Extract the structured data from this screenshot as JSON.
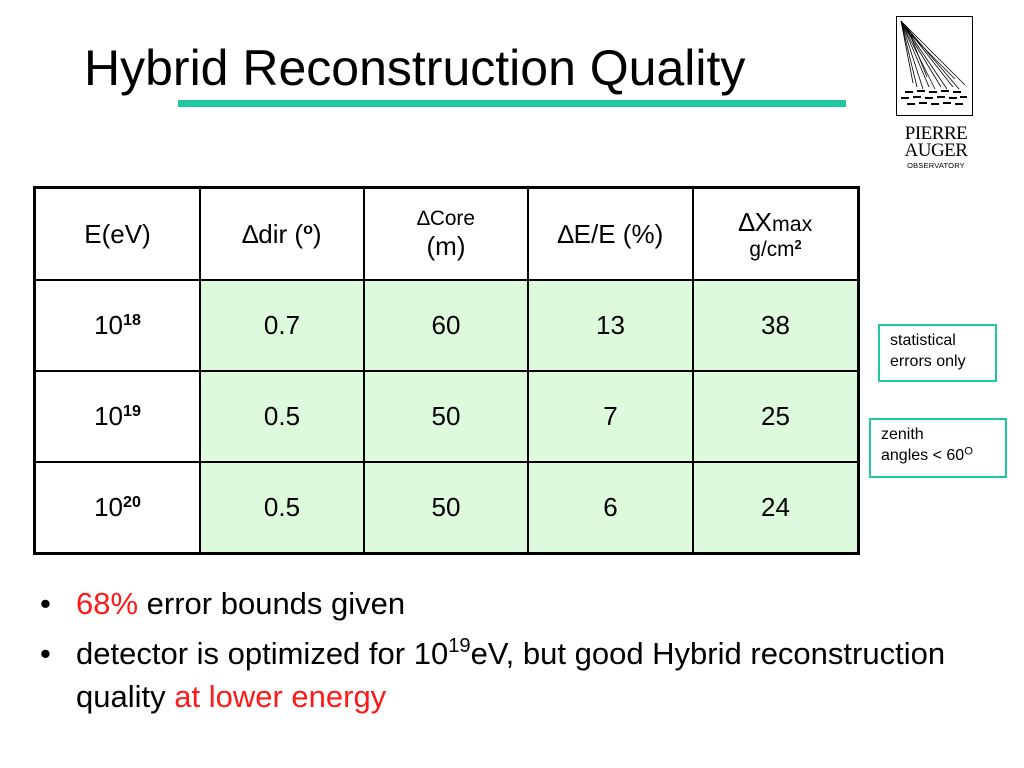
{
  "title": "Hybrid Reconstruction Quality",
  "logo": {
    "line1": "PIERRE",
    "line2": "AUGER",
    "line3": "OBSERVATORY"
  },
  "table": {
    "headers": {
      "energy": "E(eV)",
      "dir": "∆dir (",
      "dir_unit_sup": "o",
      "dir_close": ")",
      "core_line1": "∆Core",
      "core_line2": "(m)",
      "energy_res": "∆E/E (%)",
      "xmax_prefix": "∆X",
      "xmax_sub": "max",
      "xmax_unit": "g/cm",
      "xmax_unit_sup": "2"
    },
    "rows": [
      {
        "base": "10",
        "exp": "18",
        "dir": "0.7",
        "core": "60",
        "energy": "13",
        "xmax": "38"
      },
      {
        "base": "10",
        "exp": "19",
        "dir": "0.5",
        "core": "50",
        "energy": "7",
        "xmax": "25"
      },
      {
        "base": "10",
        "exp": "20",
        "dir": "0.5",
        "core": "50",
        "energy": "6",
        "xmax": "24"
      }
    ]
  },
  "notes": {
    "statistical_line1": "statistical",
    "statistical_line2": "errors only",
    "zenith_line1": "zenith",
    "zenith_line2": "angles < 60",
    "zenith_sup": "O"
  },
  "bullets": {
    "marker": "•",
    "b1_highlight": "68%",
    "b1_rest": " error bounds given",
    "b2_part1": "detector is optimized for 10",
    "b2_sup": "19",
    "b2_part2": "eV, but good Hybrid reconstruction quality ",
    "b2_highlight": "at lower energy"
  },
  "colors": {
    "accent": "#1fc8a0",
    "cell_fill": "#ddfadd",
    "highlight": "#ff1a1a"
  }
}
